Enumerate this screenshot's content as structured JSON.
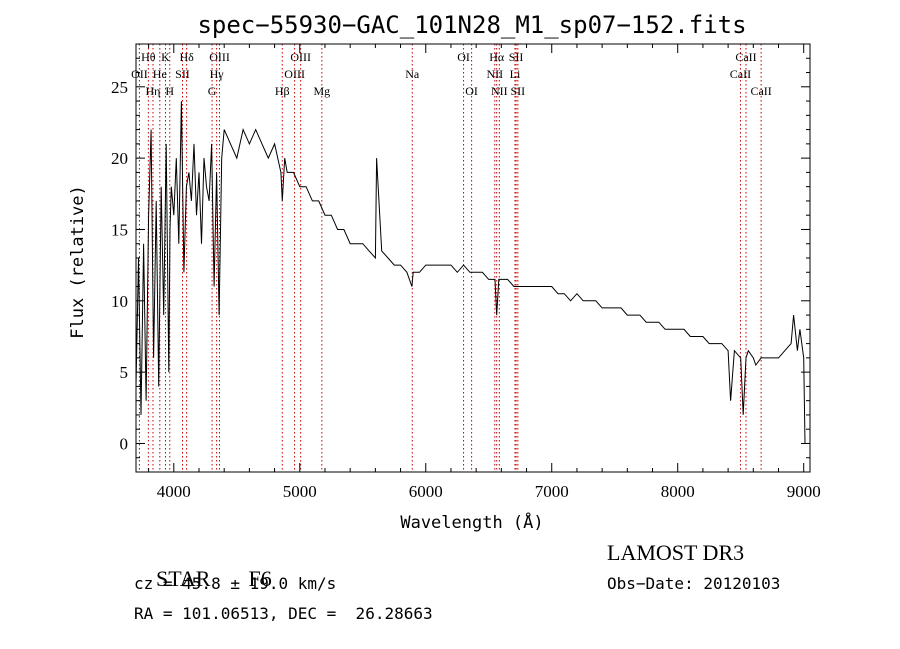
{
  "chart_data": {
    "type": "line",
    "title": "spec−55930−GAC_101N28_M1_sp07−152.fits",
    "xlabel": "Wavelength (Å)",
    "ylabel": "Flux (relative)",
    "xlim": [
      3700,
      9050
    ],
    "ylim": [
      -2,
      28
    ],
    "x_ticks": [
      4000,
      5000,
      6000,
      7000,
      8000,
      9000
    ],
    "y_ticks": [
      0,
      5,
      10,
      15,
      20,
      25
    ],
    "grid": false,
    "series": [
      {
        "name": "flux",
        "x": [
          3700,
          3720,
          3740,
          3760,
          3780,
          3800,
          3820,
          3840,
          3860,
          3880,
          3900,
          3920,
          3940,
          3960,
          3970,
          3980,
          4000,
          4020,
          4040,
          4060,
          4080,
          4100,
          4120,
          4140,
          4160,
          4180,
          4200,
          4220,
          4240,
          4260,
          4280,
          4300,
          4320,
          4340,
          4360,
          4380,
          4400,
          4450,
          4500,
          4550,
          4600,
          4650,
          4700,
          4750,
          4800,
          4850,
          4861,
          4880,
          4900,
          4950,
          5000,
          5050,
          5100,
          5150,
          5200,
          5250,
          5300,
          5350,
          5400,
          5450,
          5500,
          5550,
          5600,
          5610,
          5650,
          5700,
          5750,
          5800,
          5850,
          5890,
          5900,
          5950,
          6000,
          6050,
          6100,
          6150,
          6200,
          6250,
          6300,
          6350,
          6400,
          6450,
          6500,
          6550,
          6563,
          6580,
          6600,
          6650,
          6700,
          6750,
          6800,
          6850,
          6900,
          6950,
          7000,
          7050,
          7100,
          7150,
          7200,
          7250,
          7300,
          7350,
          7400,
          7450,
          7500,
          7550,
          7600,
          7650,
          7700,
          7750,
          7800,
          7850,
          7900,
          7950,
          8000,
          8050,
          8100,
          8150,
          8200,
          8250,
          8300,
          8350,
          8400,
          8420,
          8450,
          8500,
          8520,
          8542,
          8560,
          8600,
          8620,
          8662,
          8700,
          8750,
          8800,
          8850,
          8900,
          8920,
          8950,
          8970,
          9000,
          9010
        ],
        "values": [
          4,
          13,
          2,
          14,
          3,
          16,
          22,
          6,
          17,
          4,
          18,
          9,
          21,
          5,
          15,
          18,
          16,
          20,
          14,
          24,
          12,
          18,
          19,
          17,
          21,
          16,
          19,
          14,
          20,
          18,
          17,
          21,
          11,
          19,
          9,
          20,
          22,
          21,
          20,
          22,
          21,
          22,
          21,
          20,
          21,
          19,
          17,
          20,
          19,
          19,
          18,
          18,
          17,
          17,
          16,
          16,
          15,
          15,
          14,
          14,
          14,
          13.5,
          13,
          20,
          13.5,
          13,
          12.5,
          12.5,
          12,
          11,
          12,
          12,
          12.5,
          12.5,
          12.5,
          12.5,
          12.5,
          12,
          12.5,
          12,
          12,
          12,
          11.5,
          11.5,
          9,
          11.5,
          11.5,
          11.5,
          11,
          11,
          11,
          11,
          11,
          11,
          11,
          10.5,
          10.5,
          10,
          10.5,
          10,
          10,
          10,
          9.5,
          9.5,
          9.5,
          9.5,
          9,
          9,
          9,
          8.5,
          8.5,
          8.5,
          8,
          8,
          8,
          8,
          7.5,
          7.5,
          7.5,
          7,
          7,
          7,
          6.5,
          3,
          6.5,
          6,
          2,
          6,
          6.5,
          6,
          5.5,
          6,
          6,
          6,
          6,
          6.5,
          7,
          9,
          6.5,
          8,
          6,
          0
        ]
      }
    ],
    "lines": [
      {
        "label": "Hθ",
        "x": 3798,
        "row": 0
      },
      {
        "label": "OII",
        "x": 3727,
        "row": 1
      },
      {
        "label": "Hη",
        "x": 3835,
        "row": 2
      },
      {
        "label": "K",
        "x": 3934,
        "row": 0
      },
      {
        "label": "He",
        "x": 3889,
        "row": 1
      },
      {
        "label": "H",
        "x": 3968,
        "row": 2
      },
      {
        "label": "SII",
        "x": 4069,
        "row": 1
      },
      {
        "label": "Hδ",
        "x": 4102,
        "row": 0
      },
      {
        "label": "OIII",
        "x": 4363,
        "row": 0
      },
      {
        "label": "Hγ",
        "x": 4340,
        "row": 1
      },
      {
        "label": "G",
        "x": 4304,
        "row": 2
      },
      {
        "label": "OIII",
        "x": 5007,
        "row": 0
      },
      {
        "label": "OIII",
        "x": 4959,
        "row": 1
      },
      {
        "label": "Hβ",
        "x": 4861,
        "row": 2
      },
      {
        "label": "Mg",
        "x": 5175,
        "row": 2
      },
      {
        "label": "Na",
        "x": 5893,
        "row": 1
      },
      {
        "label": "OI",
        "x": 6300,
        "row": 0
      },
      {
        "label": "OI",
        "x": 6364,
        "row": 2
      },
      {
        "label": "Hα",
        "x": 6563,
        "row": 0
      },
      {
        "label": "SII",
        "x": 6717,
        "row": 0
      },
      {
        "label": "NII",
        "x": 6548,
        "row": 1
      },
      {
        "label": "Li",
        "x": 6708,
        "row": 1
      },
      {
        "label": "NII",
        "x": 6584,
        "row": 2
      },
      {
        "label": "SII",
        "x": 6731,
        "row": 2
      },
      {
        "label": "CaII",
        "x": 8542,
        "row": 0
      },
      {
        "label": "CaII",
        "x": 8498,
        "row": 1
      },
      {
        "label": "CaII",
        "x": 8662,
        "row": 2
      }
    ]
  },
  "info": {
    "class": "STAR",
    "subclass": "F6",
    "survey": "LAMOST DR3",
    "cz": "cz = 45.8 ± 19.0 km/s",
    "obs_date": "Obs−Date: 20120103",
    "coords": "RA = 101.06513, DEC =  26.28663"
  },
  "colors": {
    "line_marker": "#cc0000",
    "spectrum": "#000000",
    "axes": "#000000"
  }
}
